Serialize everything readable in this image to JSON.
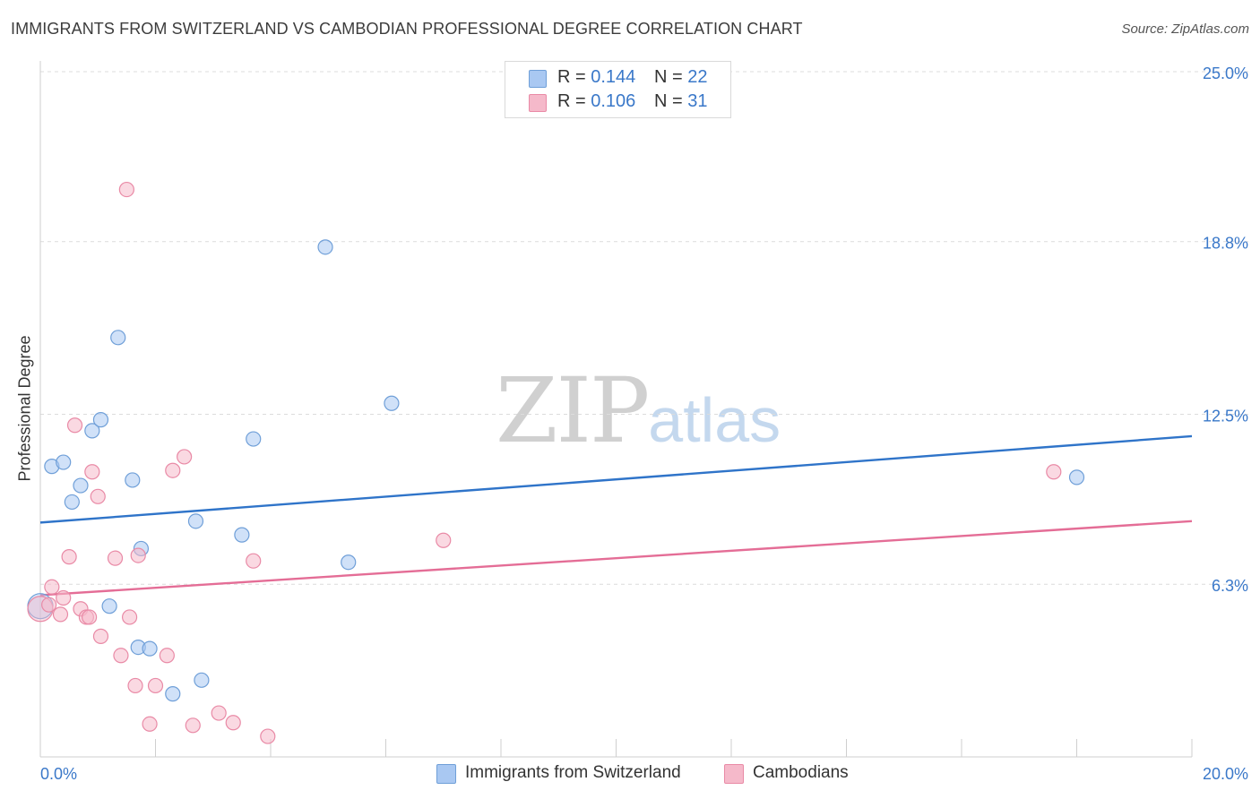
{
  "header": {
    "title": "IMMIGRANTS FROM SWITZERLAND VS CAMBODIAN PROFESSIONAL DEGREE CORRELATION CHART",
    "source": "Source: ZipAtlas.com"
  },
  "watermark": {
    "zip": "ZIP",
    "atlas": "atlas"
  },
  "legend": {
    "rows": [
      {
        "r_label": "R =",
        "r_value": "0.144",
        "n_label": "N =",
        "n_value": "22",
        "color": "#a9c8f2"
      },
      {
        "r_label": "R =",
        "r_value": "0.106",
        "n_label": "N =",
        "n_value": "31",
        "color": "#f5b9ca"
      }
    ]
  },
  "bottom_legend": [
    {
      "label": "Immigrants from Switzerland",
      "color": "#a9c8f2"
    },
    {
      "label": "Cambodians",
      "color": "#f5b9ca"
    }
  ],
  "colors": {
    "blue_fill": "#a9c8f2",
    "blue_stroke": "#6f9fd8",
    "blue_line": "#2f74c9",
    "pink_fill": "#f5b9ca",
    "pink_stroke": "#e98aa6",
    "pink_line": "#e46d96",
    "tick_text": "#3a78c9",
    "grid": "#dcdcdc"
  },
  "chart_data": {
    "type": "scatter",
    "title": "IMMIGRANTS FROM SWITZERLAND VS CAMBODIAN PROFESSIONAL DEGREE CORRELATION CHART",
    "xlabel": "",
    "ylabel": "Professional Degree",
    "xlim": [
      0,
      20
    ],
    "ylim": [
      0,
      25
    ],
    "x_tick_labels": [
      "0.0%",
      "20.0%"
    ],
    "y_ticks": [
      6.3,
      12.5,
      18.8,
      25.0
    ],
    "y_tick_labels": [
      "6.3%",
      "12.5%",
      "18.8%",
      "25.0%"
    ],
    "grid": "horizontal dashed",
    "legend_position": "top-center",
    "series": [
      {
        "name": "Immigrants from Switzerland",
        "color": "#a9c8f2",
        "points": [
          [
            0.0,
            5.5
          ],
          [
            0.2,
            10.6
          ],
          [
            0.4,
            10.75
          ],
          [
            0.55,
            9.3
          ],
          [
            0.7,
            9.9
          ],
          [
            0.9,
            11.9
          ],
          [
            1.05,
            12.3
          ],
          [
            1.2,
            5.5
          ],
          [
            1.35,
            15.3
          ],
          [
            1.6,
            10.1
          ],
          [
            1.75,
            7.6
          ],
          [
            1.7,
            4.0
          ],
          [
            1.9,
            3.95
          ],
          [
            2.3,
            2.3
          ],
          [
            2.7,
            8.6
          ],
          [
            2.8,
            2.8
          ],
          [
            3.5,
            8.1
          ],
          [
            3.7,
            11.6
          ],
          [
            4.95,
            18.6
          ],
          [
            5.35,
            7.1
          ],
          [
            6.1,
            12.9
          ],
          [
            18.0,
            10.2
          ]
        ]
      },
      {
        "name": "Cambodians",
        "color": "#f5b9ca",
        "points": [
          [
            0.0,
            5.4
          ],
          [
            0.15,
            5.55
          ],
          [
            0.2,
            6.2
          ],
          [
            0.35,
            5.2
          ],
          [
            0.4,
            5.8
          ],
          [
            0.5,
            7.3
          ],
          [
            0.6,
            12.1
          ],
          [
            0.7,
            5.4
          ],
          [
            0.8,
            5.1
          ],
          [
            0.85,
            5.1
          ],
          [
            0.9,
            10.4
          ],
          [
            1.0,
            9.5
          ],
          [
            1.05,
            4.4
          ],
          [
            1.3,
            7.25
          ],
          [
            1.4,
            3.7
          ],
          [
            1.5,
            20.7
          ],
          [
            1.55,
            5.1
          ],
          [
            1.65,
            2.6
          ],
          [
            1.7,
            7.35
          ],
          [
            1.9,
            1.2
          ],
          [
            2.0,
            2.6
          ],
          [
            2.2,
            3.7
          ],
          [
            2.3,
            10.45
          ],
          [
            2.5,
            10.95
          ],
          [
            2.65,
            1.15
          ],
          [
            3.1,
            1.6
          ],
          [
            3.35,
            1.25
          ],
          [
            3.7,
            7.15
          ],
          [
            3.95,
            0.75
          ],
          [
            7.0,
            7.9
          ],
          [
            17.6,
            10.4
          ]
        ]
      }
    ],
    "trend_lines": [
      {
        "series": "Immigrants from Switzerland",
        "x": [
          0,
          20
        ],
        "y": [
          8.55,
          11.7
        ]
      },
      {
        "series": "Cambodians",
        "x": [
          0,
          20
        ],
        "y": [
          5.9,
          8.6
        ]
      }
    ]
  }
}
